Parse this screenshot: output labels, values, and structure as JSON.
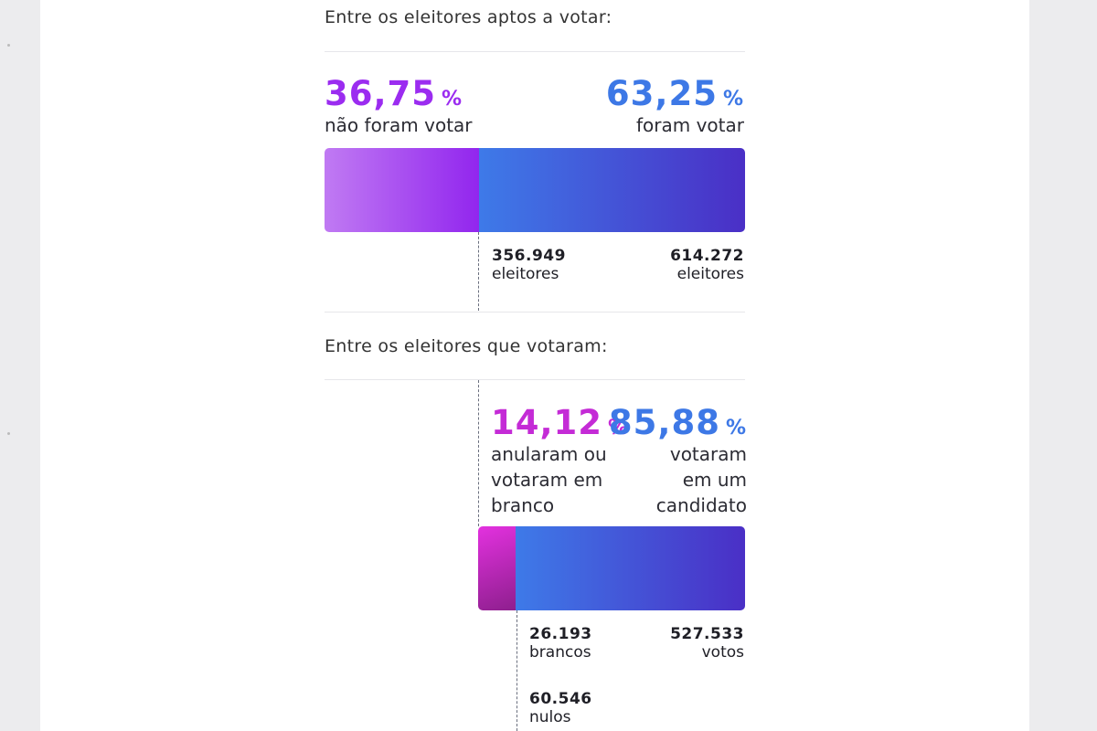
{
  "chart_data": [
    {
      "type": "bar",
      "title": "Entre os eleitores aptos a votar:",
      "segments": [
        {
          "label": "não foram votar",
          "percent": 36.75,
          "percent_text": "36,75",
          "count": "356.949",
          "unit": "eleitores",
          "color": "#9b2cf0"
        },
        {
          "label": "foram votar",
          "percent": 63.25,
          "percent_text": "63,25",
          "count": "614.272",
          "unit": "eleitores",
          "color": "#3a6ee0"
        }
      ]
    },
    {
      "type": "bar",
      "title": "Entre os eleitores que votaram:",
      "segments": [
        {
          "label": "anularam ou votaram em branco",
          "percent": 14.12,
          "percent_text": "14,12",
          "color": "#c42bd6"
        },
        {
          "label": "votaram em um candidato",
          "percent": 85.88,
          "percent_text": "85,88",
          "count": "527.533",
          "unit": "votos",
          "color": "#3a6ee0"
        }
      ],
      "breakdown": [
        {
          "count": "26.193",
          "unit": "brancos"
        },
        {
          "count": "60.546",
          "unit": "nulos"
        }
      ]
    }
  ],
  "labels": {
    "percent_symbol": "%",
    "s1_left_desc": "não foram votar",
    "s1_right_desc": "foram votar",
    "s2_left_desc_lines": [
      "anularam ou",
      "votaram em",
      "branco"
    ],
    "s2_right_desc_lines": [
      "votaram",
      "em um",
      "candidato"
    ]
  },
  "colors": {
    "purple": "#9b2cf0",
    "magenta": "#c42bd6",
    "blue": "#3d78e6",
    "indigo": "#4a2ec4"
  }
}
